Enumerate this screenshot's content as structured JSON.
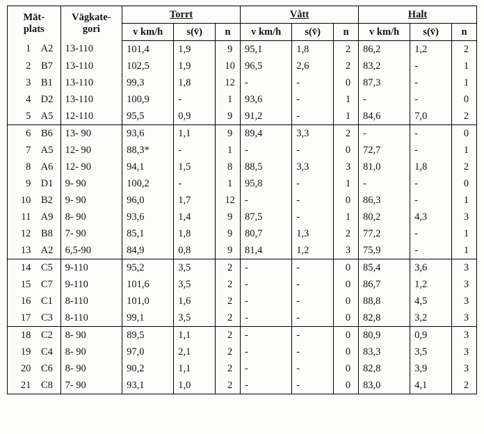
{
  "header": {
    "matplats": "Mät-\nplats",
    "vagkategori": "Vägkate-\ngori",
    "groups": [
      {
        "title": "Torrt",
        "v": "v km/h",
        "s": "s(v̄)",
        "n": "n"
      },
      {
        "title": "Vått",
        "v": "v km/h",
        "s": "s(v̄)",
        "n": "n"
      },
      {
        "title": "Halt",
        "v": "v km/h",
        "s": "s(v̄)",
        "n": "n"
      }
    ]
  },
  "sections": [
    {
      "rows": [
        {
          "no": "1",
          "code": "A2",
          "vk": "13-110",
          "tv": "101,4",
          "ts": "1,9",
          "tn": "9",
          "vv": "95,1",
          "vs": "1,8",
          "vn": "2",
          "hv": "86,2",
          "hs": "1,2",
          "hn": "2"
        },
        {
          "no": "2",
          "code": "B7",
          "vk": "13-110",
          "tv": "102,5",
          "ts": "1,9",
          "tn": "10",
          "vv": "96,5",
          "vs": "2,6",
          "vn": "2",
          "hv": "83,2",
          "hs": "-",
          "hn": "1"
        },
        {
          "no": "3",
          "code": "B1",
          "vk": "13-110",
          "tv": "99,3",
          "ts": "1,8",
          "tn": "12",
          "vv": "-",
          "vs": "-",
          "vn": "0",
          "hv": "87,3",
          "hs": "-",
          "hn": "1"
        },
        {
          "no": "4",
          "code": "D2",
          "vk": "13-110",
          "tv": "100,9",
          "ts": "-",
          "tn": "1",
          "vv": "93,6",
          "vs": "-",
          "vn": "1",
          "hv": "-",
          "hs": "-",
          "hn": "0"
        },
        {
          "no": "5",
          "code": "A5",
          "vk": "12-110",
          "tv": "95,5",
          "ts": "0,9",
          "tn": "9",
          "vv": "91,2",
          "vs": "-",
          "vn": "1",
          "hv": "84,6",
          "hs": "7,0",
          "hn": "2"
        }
      ]
    },
    {
      "rows": [
        {
          "no": "6",
          "code": "B6",
          "vk": "13- 90",
          "tv": "93,6",
          "ts": "1,1",
          "tn": "9",
          "vv": "89,4",
          "vs": "3,3",
          "vn": "2",
          "hv": "-",
          "hs": "-",
          "hn": "0"
        },
        {
          "no": "7",
          "code": "A5",
          "vk": "12- 90",
          "tv": "88,3*",
          "ts": "-",
          "tn": "1",
          "vv": "-",
          "vs": "-",
          "vn": "0",
          "hv": "72,7",
          "hs": "-",
          "hn": "1"
        },
        {
          "no": "8",
          "code": "A6",
          "vk": "12- 90",
          "tv": "94,1",
          "ts": "1,5",
          "tn": "8",
          "vv": "88,5",
          "vs": "3,3",
          "vn": "3",
          "hv": "81,0",
          "hs": "1,8",
          "hn": "2"
        },
        {
          "no": "9",
          "code": "D1",
          "vk": "9- 90",
          "tv": "100,2",
          "ts": "-",
          "tn": "1",
          "vv": "95,8",
          "vs": "-",
          "vn": "1",
          "hv": "-",
          "hs": "-",
          "hn": "0"
        },
        {
          "no": "10",
          "code": "B2",
          "vk": "9- 90",
          "tv": "96,0",
          "ts": "1,7",
          "tn": "12",
          "vv": "-",
          "vs": "-",
          "vn": "0",
          "hv": "86,3",
          "hs": "-",
          "hn": "1"
        },
        {
          "no": "11",
          "code": "A9",
          "vk": "8- 90",
          "tv": "93,6",
          "ts": "1,4",
          "tn": "9",
          "vv": "87,5",
          "vs": "-",
          "vn": "1",
          "hv": "80,2",
          "hs": "4,3",
          "hn": "3"
        },
        {
          "no": "12",
          "code": "B8",
          "vk": "7- 90",
          "tv": "85,1",
          "ts": "1,8",
          "tn": "9",
          "vv": "80,7",
          "vs": "1,3",
          "vn": "2",
          "hv": "77,2",
          "hs": "-",
          "hn": "1"
        },
        {
          "no": "13",
          "code": "A2",
          "vk": "6,5-90",
          "tv": "84,9",
          "ts": "0,8",
          "tn": "9",
          "vv": "81,4",
          "vs": "1,2",
          "vn": "3",
          "hv": "75,9",
          "hs": "-",
          "hn": "1"
        }
      ]
    },
    {
      "rows": [
        {
          "no": "14",
          "code": "C5",
          "vk": "9-110",
          "tv": "95,2",
          "ts": "3,5",
          "tn": "2",
          "vv": "-",
          "vs": "-",
          "vn": "0",
          "hv": "85,4",
          "hs": "3,6",
          "hn": "3"
        },
        {
          "no": "15",
          "code": "C7",
          "vk": "9-110",
          "tv": "101,6",
          "ts": "3,5",
          "tn": "2",
          "vv": "-",
          "vs": "-",
          "vn": "0",
          "hv": "86,7",
          "hs": "1,2",
          "hn": "3"
        },
        {
          "no": "16",
          "code": "C1",
          "vk": "8-110",
          "tv": "101,0",
          "ts": "1,6",
          "tn": "2",
          "vv": "-",
          "vs": "-",
          "vn": "0",
          "hv": "88,8",
          "hs": "4,5",
          "hn": "3"
        },
        {
          "no": "17",
          "code": "C3",
          "vk": "8-110",
          "tv": "99,1",
          "ts": "3,5",
          "tn": "2",
          "vv": "-",
          "vs": "-",
          "vn": "0",
          "hv": "82,8",
          "hs": "3,2",
          "hn": "3"
        }
      ]
    },
    {
      "rows": [
        {
          "no": "18",
          "code": "C2",
          "vk": "8- 90",
          "tv": "89,5",
          "ts": "1,1",
          "tn": "2",
          "vv": "-",
          "vs": "-",
          "vn": "0",
          "hv": "80,9",
          "hs": "0,9",
          "hn": "3"
        },
        {
          "no": "19",
          "code": "C4",
          "vk": "8- 90",
          "tv": "97,0",
          "ts": "2,1",
          "tn": "2",
          "vv": "-",
          "vs": "-",
          "vn": "0",
          "hv": "83,3",
          "hs": "3,5",
          "hn": "3"
        },
        {
          "no": "20",
          "code": "C6",
          "vk": "8- 90",
          "tv": "90,2",
          "ts": "1,1",
          "tn": "2",
          "vv": "-",
          "vs": "-",
          "vn": "0",
          "hv": "82,8",
          "hs": "3,9",
          "hn": "3"
        },
        {
          "no": "21",
          "code": "C8",
          "vk": "7- 90",
          "tv": "93,1",
          "ts": "1,0",
          "tn": "2",
          "vv": "-",
          "vs": "-",
          "vn": "0",
          "hv": "83,0",
          "hs": "4,1",
          "hn": "2"
        }
      ]
    }
  ]
}
